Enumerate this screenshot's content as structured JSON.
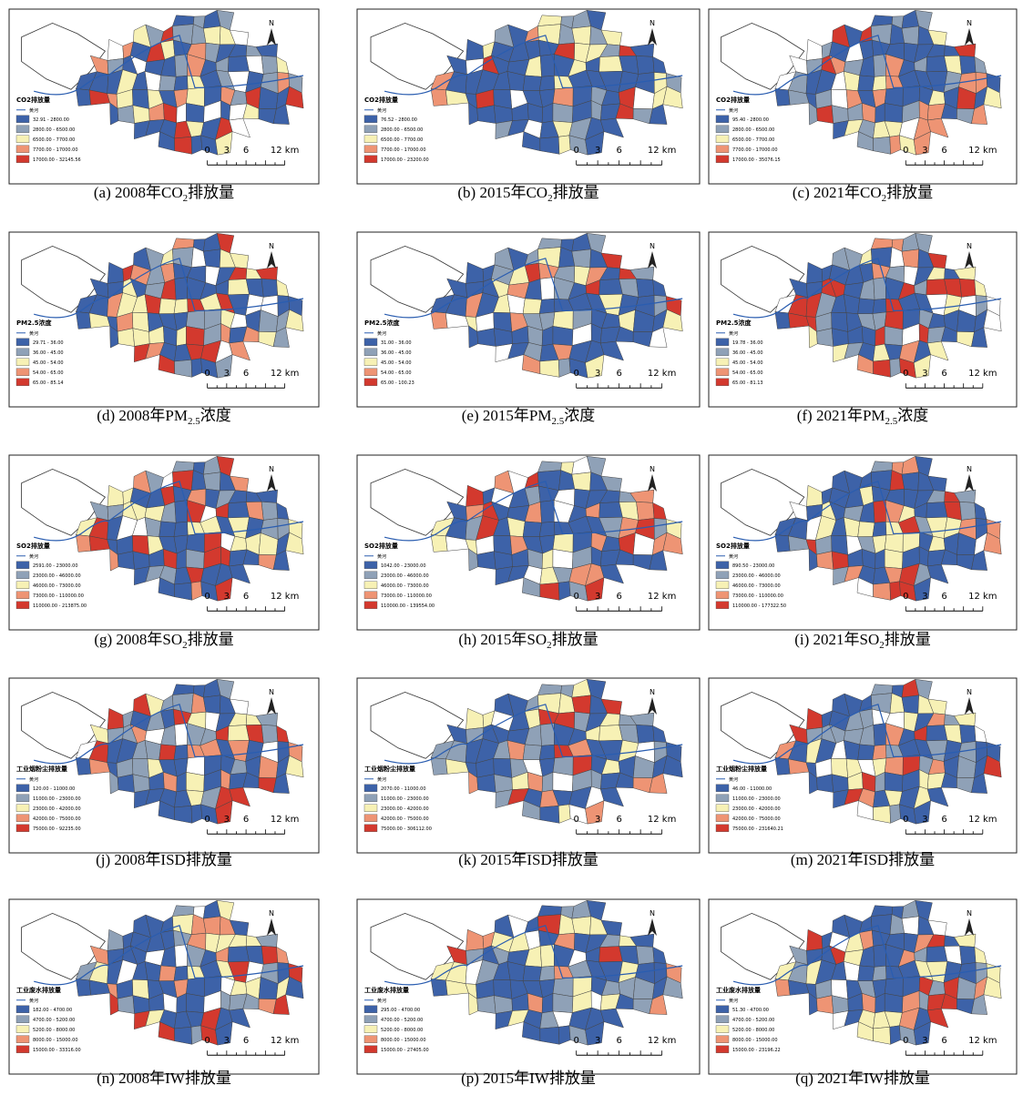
{
  "common": {
    "river": "黄河",
    "north": "N",
    "scale": [
      "0",
      "3",
      "6",
      "12 km"
    ],
    "legend_colors": [
      "#3d62a8",
      "#8fa1b7",
      "#f7f1b5",
      "#ee9474",
      "#d3392e"
    ]
  },
  "panels": [
    {
      "caption": {
        "pre": "(a) 2008年CO",
        "sub": "2",
        "post": "排放量"
      },
      "legend_title": "CO2排放量",
      "classes": [
        "32.91 - 2800.00",
        "2800.00 - 6500.00",
        "6500.00 - 7700.00",
        "7700.00 - 17000.00",
        "17000.00 - 32145.56"
      ]
    },
    {
      "caption": {
        "pre": "(b) 2015年CO",
        "sub": "2",
        "post": "排放量"
      },
      "legend_title": "CO2排放量",
      "classes": [
        "76.52 - 2800.00",
        "2800.00 - 6500.00",
        "6500.00 - 7700.00",
        "7700.00 - 17000.00",
        "17000.00 - 23200.00"
      ]
    },
    {
      "caption": {
        "pre": "(c) 2021年CO",
        "sub": "2",
        "post": "排放量"
      },
      "legend_title": "CO2排放量",
      "classes": [
        "95.40 - 2800.00",
        "2800.00 - 6500.00",
        "6500.00 - 7700.00",
        "7700.00 - 17000.00",
        "17000.00 - 35076.15"
      ]
    },
    {
      "caption": {
        "pre": "(d) 2008年PM",
        "sub": "2.5",
        "post": "浓度"
      },
      "legend_title": "PM2.5浓度",
      "classes": [
        "29.71 - 36.00",
        "36.00 - 45.00",
        "45.00 - 54.00",
        "54.00 - 65.00",
        "65.00 - 85.14"
      ]
    },
    {
      "caption": {
        "pre": "(e) 2015年PM",
        "sub": "2.5",
        "post": "浓度"
      },
      "legend_title": "PM2.5浓度",
      "classes": [
        "31.00 - 36.00",
        "36.00 - 45.00",
        "45.00 - 54.00",
        "54.00 - 65.00",
        "65.00 - 100.23"
      ]
    },
    {
      "caption": {
        "pre": "(f) 2021年PM",
        "sub": "2.5",
        "post": "浓度"
      },
      "legend_title": "PM2.5浓度",
      "classes": [
        "19.78 - 36.00",
        "36.00 - 45.00",
        "45.00 - 54.00",
        "54.00 - 65.00",
        "65.00 - 81.13"
      ]
    },
    {
      "caption": {
        "pre": "(g) 2008年SO",
        "sub": "2",
        "post": "排放量"
      },
      "legend_title": "SO2排放量",
      "classes": [
        "2591.00 - 23000.00",
        "23000.00 - 46000.00",
        "46000.00 - 73000.00",
        "73000.00 - 110000.00",
        "110000.00 - 213875.00"
      ]
    },
    {
      "caption": {
        "pre": "(h) 2015年SO",
        "sub": "2",
        "post": "排放量"
      },
      "legend_title": "SO2排放量",
      "classes": [
        "1042.00 - 23000.00",
        "23000.00 - 46000.00",
        "46000.00 - 73000.00",
        "73000.00 - 110000.00",
        "110000.00 - 139554.00"
      ]
    },
    {
      "caption": {
        "pre": "(i) 2021年SO",
        "sub": "2",
        "post": "排放量"
      },
      "legend_title": "SO2排放量",
      "classes": [
        "890.50 - 23000.00",
        "23000.00 - 46000.00",
        "46000.00 - 73000.00",
        "73000.00 - 110000.00",
        "110000.00 - 177322.50"
      ]
    },
    {
      "caption": {
        "pre": "(j) 2008年ISD排放量"
      },
      "legend_title": "工业烟粉尘排放量",
      "classes": [
        "120.00 - 11000.00",
        "11000.00 - 23000.00",
        "23000.00 - 42000.00",
        "42000.00 - 75000.00",
        "75000.00 - 92235.00"
      ]
    },
    {
      "caption": {
        "pre": "(k) 2015年ISD排放量"
      },
      "legend_title": "工业烟粉尘排放量",
      "classes": [
        "2070.00 - 11000.00",
        "11000.00 - 23000.00",
        "23000.00 - 42000.00",
        "42000.00 - 75000.00",
        "75000.00 - 306112.00"
      ]
    },
    {
      "caption": {
        "pre": "(m) 2021年ISD排放量"
      },
      "legend_title": "工业烟粉尘排放量",
      "classes": [
        "46.00 - 11000.00",
        "11000.00 - 23000.00",
        "23000.00 - 42000.00",
        "42000.00 - 75000.00",
        "75000.00 - 231640.21"
      ]
    },
    {
      "caption": {
        "pre": "(n) 2008年IW排放量"
      },
      "legend_title": "工业废水排放量",
      "classes": [
        "182.00 - 4700.00",
        "4700.00 - 5200.00",
        "5200.00 - 8000.00",
        "8000.00 - 15000.00",
        "15000.00 - 33316.00"
      ]
    },
    {
      "caption": {
        "pre": "(p) 2015年IW排放量"
      },
      "legend_title": "工业废水排放量",
      "classes": [
        "295.00 - 4700.00",
        "4700.00 - 5200.00",
        "5200.00 - 8000.00",
        "8000.00 - 15000.00",
        "15000.00 - 27405.00"
      ]
    },
    {
      "caption": {
        "pre": "(q) 2021年IW排放量"
      },
      "legend_title": "工业废水排放量",
      "classes": [
        "51.30 - 4700.00",
        "4700.00 - 5200.00",
        "5200.00 - 8000.00",
        "8000.00 - 15000.00",
        "15000.00 - 23196.22"
      ]
    }
  ]
}
